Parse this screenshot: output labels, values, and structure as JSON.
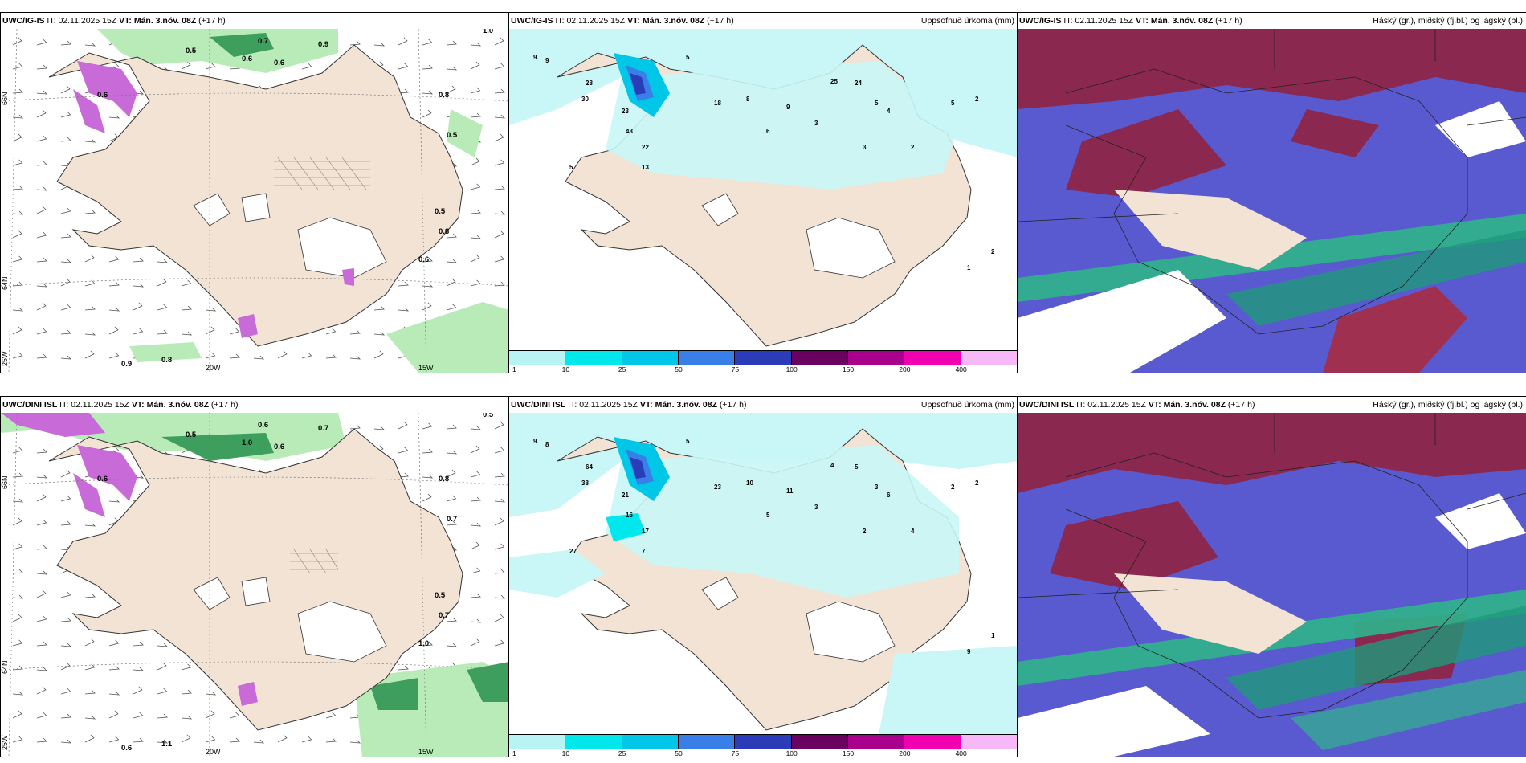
{
  "rows": [
    {
      "model": "UWC/IG-IS",
      "it_label": "IT:",
      "it_value": "02.11.2025 15Z",
      "vt_label": "VT:",
      "vt_value": "Mán. 3.nóv. 08Z",
      "lead": "(+17 h)",
      "mid_right_title": "Uppsöfnuð úrkoma (mm)",
      "right_right_title": "Háský (gr.), miðský (fj.bl.) og lágský (bl.)",
      "left_labels": {
        "lat66": "66N",
        "lat64": "64N",
        "lon25": "25W",
        "lon20": "20W",
        "lon15": "15W"
      },
      "left_numbers": [
        "0.5",
        "0.7",
        "0.9",
        "0.6",
        "0.6",
        "0.8",
        "0.5",
        "0.6",
        "0.8",
        "0.5",
        "0.6",
        "0.9",
        "0.8",
        "1.0"
      ],
      "precip_numbers": [
        "9",
        "9",
        "5",
        "28",
        "30",
        "23",
        "43",
        "22",
        "13",
        "5",
        "18",
        "8",
        "9",
        "25",
        "24",
        "5",
        "4",
        "5",
        "3",
        "6",
        "3",
        "2",
        "2",
        "2",
        "1"
      ]
    },
    {
      "model": "UWC/DINI ISL",
      "it_label": "IT:",
      "it_value": "02.11.2025 15Z",
      "vt_label": "VT:",
      "vt_value": "Mán. 3.nóv. 08Z",
      "lead": "(+17 h)",
      "mid_right_title": "Uppsöfnuð úrkoma (mm)",
      "right_right_title": "Háský (gr.), miðský (fj.bl.) og lágský (bl.)",
      "left_labels": {
        "lat66": "66N",
        "lat64": "64N",
        "lon25": "25W",
        "lon20": "20W",
        "lon15": "15W"
      },
      "left_numbers": [
        "0.5",
        "0.6",
        "0.7",
        "1.0",
        "0.6",
        "0.8",
        "0.7",
        "0.6",
        "0.7",
        "0.5",
        "1.0",
        "0.6",
        "1.1",
        "0.5"
      ],
      "precip_numbers": [
        "9",
        "8",
        "5",
        "64",
        "38",
        "21",
        "16",
        "17",
        "7",
        "27",
        "23",
        "10",
        "11",
        "4",
        "5",
        "3",
        "6",
        "2",
        "3",
        "5",
        "2",
        "4",
        "2",
        "1",
        "9"
      ]
    }
  ],
  "colorbar": {
    "ticks": [
      "1",
      "10",
      "25",
      "50",
      "75",
      "100",
      "150",
      "200",
      "400"
    ],
    "colors": [
      "#b8f4f4",
      "#00e8ec",
      "#00c6e8",
      "#3a7ee8",
      "#2a3cb8",
      "#6a0060",
      "#a8008c",
      "#f000b0",
      "#f7b8f7"
    ]
  },
  "colors": {
    "land": "#f2e3d4",
    "sea": "#ffffff",
    "precip_light": "#c9f6f6",
    "green_light": "#b9ebb9",
    "green_dark": "#3e9e5e",
    "magenta": "#c86ad8",
    "cloud_high": "#8a2850",
    "cloud_mid": "#5a5ad0",
    "cloud_low": "#2eb48a"
  }
}
